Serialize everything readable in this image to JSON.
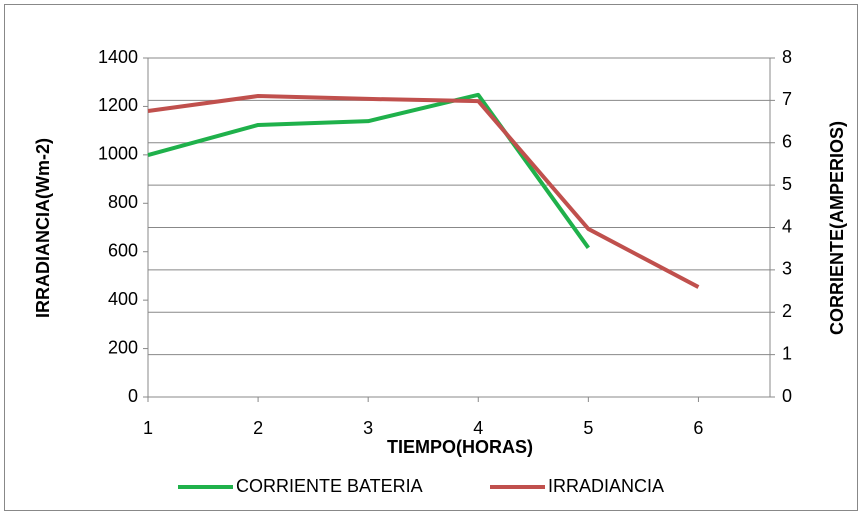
{
  "chart_data": {
    "type": "line",
    "x_label": "TIEMPO(HORAS)",
    "y_label": "IRRADIANCIA(Wm-2)",
    "y2_label": "CORRIENTE(AMPERIOS)",
    "x": [
      1,
      2,
      3,
      4,
      5,
      6
    ],
    "xlim": [
      1,
      6.65
    ],
    "xticks": [
      1,
      2,
      3,
      4,
      5,
      6
    ],
    "ylim": [
      0,
      1400
    ],
    "yticks": [
      0,
      200,
      400,
      600,
      800,
      1000,
      1200,
      1400
    ],
    "y2lim": [
      0,
      8
    ],
    "y2ticks": [
      0,
      1,
      2,
      3,
      4,
      5,
      6,
      7,
      8
    ],
    "grid": true,
    "legend": "bottom",
    "series": [
      {
        "name": "CORRIENTE BATERIA",
        "color": "#1fb14b",
        "axis": "y2",
        "values": [
          5.71,
          6.42,
          6.51,
          7.13,
          3.52,
          null
        ]
      },
      {
        "name": "IRRADIANCIA",
        "color": "#c0504d",
        "values": [
          1181,
          1243,
          1231,
          1222,
          694,
          454
        ]
      }
    ]
  }
}
